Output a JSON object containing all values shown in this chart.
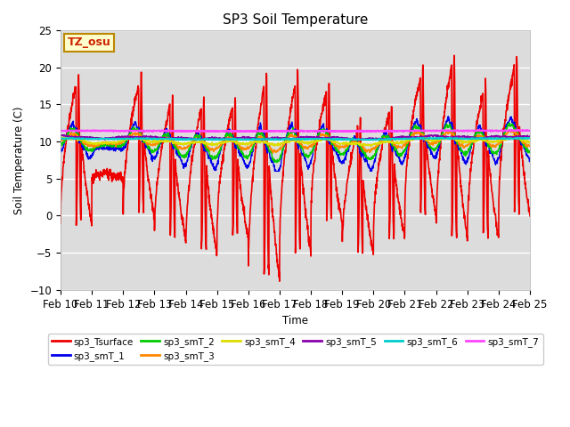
{
  "title": "SP3 Soil Temperature",
  "xlabel": "Time",
  "ylabel": "Soil Temperature (C)",
  "ylim": [
    -10,
    25
  ],
  "xlim": [
    0,
    15
  ],
  "x_tick_labels": [
    "Feb 10",
    "Feb 11",
    "Feb 12",
    "Feb 13",
    "Feb 14",
    "Feb 15",
    "Feb 16",
    "Feb 17",
    "Feb 18",
    "Feb 19",
    "Feb 20",
    "Feb 21",
    "Feb 22",
    "Feb 23",
    "Feb 24",
    "Feb 25"
  ],
  "annotation_text": "TZ_osu",
  "annotation_color": "#cc2200",
  "annotation_bg": "#ffffcc",
  "annotation_border": "#bb8800",
  "bg_color": "#dcdcdc",
  "series_order": [
    "sp3_Tsurface",
    "sp3_smT_1",
    "sp3_smT_2",
    "sp3_smT_3",
    "sp3_smT_4",
    "sp3_smT_5",
    "sp3_smT_6",
    "sp3_smT_7"
  ],
  "series": {
    "sp3_Tsurface": {
      "color": "#ee0000",
      "lw": 1.2
    },
    "sp3_smT_1": {
      "color": "#0000ee",
      "lw": 1.0
    },
    "sp3_smT_2": {
      "color": "#00cc00",
      "lw": 1.0
    },
    "sp3_smT_3": {
      "color": "#ff8800",
      "lw": 1.0
    },
    "sp3_smT_4": {
      "color": "#dddd00",
      "lw": 1.0
    },
    "sp3_smT_5": {
      "color": "#8800aa",
      "lw": 1.0
    },
    "sp3_smT_6": {
      "color": "#00cccc",
      "lw": 1.2
    },
    "sp3_smT_7": {
      "color": "#ff44ff",
      "lw": 1.5
    }
  },
  "legend_ncol": 6,
  "legend_rows": [
    [
      "sp3_Tsurface",
      "sp3_smT_1",
      "sp3_smT_2",
      "sp3_smT_3",
      "sp3_smT_4",
      "sp3_smT_5"
    ],
    [
      "sp3_smT_6",
      "sp3_smT_7"
    ]
  ]
}
